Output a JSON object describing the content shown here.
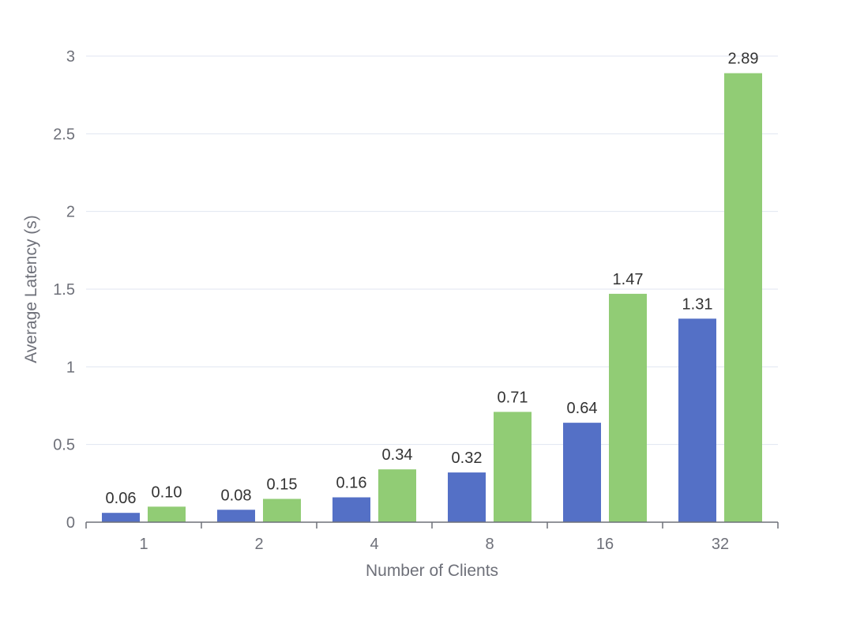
{
  "chart_data": {
    "type": "bar",
    "categories": [
      "1",
      "2",
      "4",
      "8",
      "16",
      "32"
    ],
    "series": [
      {
        "values": [
          0.06,
          0.08,
          0.16,
          0.32,
          0.64,
          1.31
        ],
        "labels": [
          "0.06",
          "0.08",
          "0.16",
          "0.32",
          "0.64",
          "1.31"
        ],
        "color": "#5470c6"
      },
      {
        "values": [
          0.1,
          0.15,
          0.34,
          0.71,
          1.47,
          2.89
        ],
        "labels": [
          "0.10",
          "0.15",
          "0.34",
          "0.71",
          "1.47",
          "2.89"
        ],
        "color": "#91cc75"
      }
    ],
    "xlabel": "Number of Clients",
    "ylabel": "Average Latency (s)",
    "ylim": [
      0,
      3
    ],
    "yticks": [
      0,
      0.5,
      1,
      1.5,
      2,
      2.5,
      3
    ],
    "ytick_labels": [
      "0",
      "0.5",
      "1",
      "1.5",
      "2",
      "2.5",
      "3"
    ],
    "grid": true
  }
}
